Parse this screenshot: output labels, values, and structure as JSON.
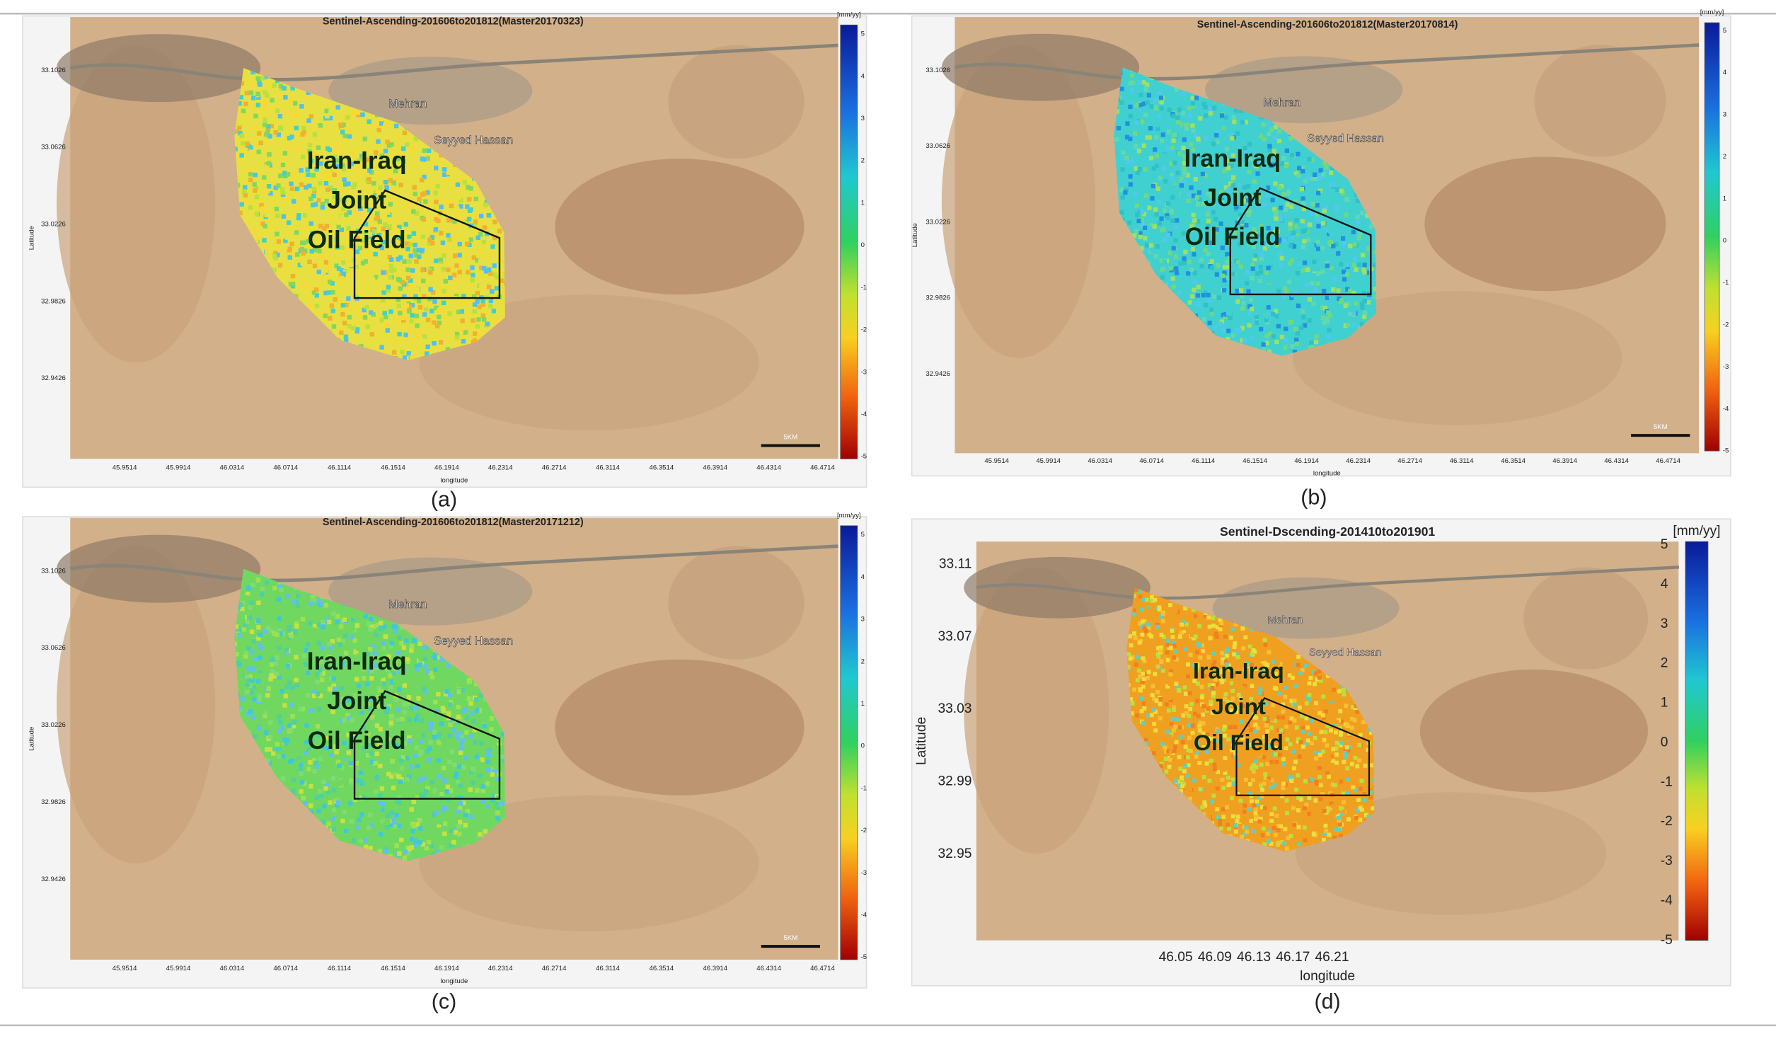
{
  "figure": {
    "panels": [
      {
        "title": "Sentinel-Ascending-201606to201812(Master20170323)",
        "unit": "[mm/yy]",
        "colorbar_ticks": [
          5,
          4,
          3,
          2,
          1,
          0,
          -1,
          -2,
          -3,
          -4,
          -5
        ],
        "yticks": [
          33.1026,
          33.0626,
          33.0226,
          32.9826,
          32.9426
        ],
        "xticks": [
          45.9514,
          45.9914,
          46.0314,
          46.0714,
          46.1114,
          46.1514,
          46.1914,
          46.2314,
          46.2714,
          46.3114,
          46.3514,
          46.3914,
          46.4314,
          46.4714
        ],
        "xlabel": "longitude",
        "ylabel": "Latitude",
        "field_label": [
          "Iran-Iraq",
          "Joint",
          "Oil Field"
        ],
        "places": [
          "Mehran",
          "Seyyed Hassan"
        ],
        "scale_bar": "5KM",
        "caption": "(a)"
      },
      {
        "title": "Sentinel-Ascending-201606to201812(Master20170814)",
        "unit": "[mm/yy]",
        "colorbar_ticks": [
          5,
          4,
          3,
          2,
          1,
          0,
          -1,
          -2,
          -3,
          -4,
          -5
        ],
        "yticks": [
          33.1026,
          33.0626,
          33.0226,
          32.9826,
          32.9426
        ],
        "xticks": [
          45.9514,
          45.9914,
          46.0314,
          46.0714,
          46.1114,
          46.1514,
          46.1914,
          46.2314,
          46.2714,
          46.3114,
          46.3514,
          46.3914,
          46.4314,
          46.4714
        ],
        "xlabel": "longitude",
        "ylabel": "Latitude",
        "field_label": [
          "Iran-Iraq",
          "Joint",
          "Oil Field"
        ],
        "places": [
          "Mehran",
          "Seyyed Hassan"
        ],
        "scale_bar": "5KM",
        "caption": "(b)"
      },
      {
        "title": "Sentinel-Ascending-201606to201812(Master20171212)",
        "unit": "[mm/yy]",
        "colorbar_ticks": [
          5,
          4,
          3,
          2,
          1,
          0,
          -1,
          -2,
          -3,
          -4,
          -5
        ],
        "yticks": [
          33.1026,
          33.0626,
          33.0226,
          32.9826,
          32.9426
        ],
        "xticks": [
          45.9514,
          45.9914,
          46.0314,
          46.0714,
          46.1114,
          46.1514,
          46.1914,
          46.2314,
          46.2714,
          46.3114,
          46.3514,
          46.3914,
          46.4314,
          46.4714
        ],
        "xlabel": "longitude",
        "ylabel": "Latitude",
        "field_label": [
          "Iran-Iraq",
          "Joint",
          "Oil Field"
        ],
        "places": [
          "Mehran",
          "Seyyed Hassan"
        ],
        "scale_bar": "5KM",
        "caption": "(c)"
      },
      {
        "title": "Sentinel-Dscending-201410to201901",
        "unit": "[mm/yy]",
        "colorbar_ticks": [
          5,
          4,
          3,
          2,
          1,
          0,
          -1,
          -2,
          -3,
          -4,
          -5
        ],
        "yticks": [
          33.11,
          33.07,
          33.03,
          32.99,
          32.95
        ],
        "xticks": [
          46.05,
          46.09,
          46.13,
          46.17,
          46.21
        ],
        "xlabel": "longitude",
        "ylabel": "Latitude",
        "field_label": [
          "Iran-Iraq",
          "Joint",
          "Oil Field"
        ],
        "places": [
          "Mehran",
          "Seyyed Hassan"
        ],
        "caption": "(d)"
      }
    ]
  }
}
